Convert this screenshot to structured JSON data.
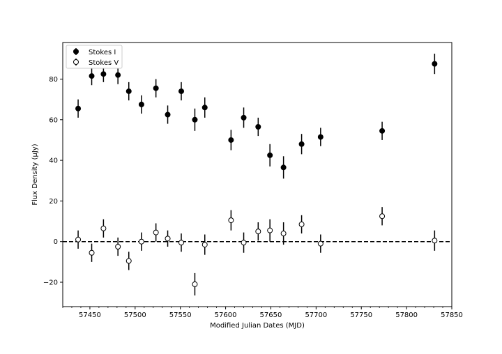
{
  "chart_data": {
    "type": "scatter",
    "title": "",
    "xlabel": "Modified Julian Dates (MJD)",
    "ylabel": "Flux Density (μJy)",
    "xlim": [
      57420,
      57850
    ],
    "ylim": [
      -32,
      98
    ],
    "xticks": [
      57450,
      57500,
      57550,
      57600,
      57650,
      57700,
      57750,
      57800,
      57850
    ],
    "xtick_labels": [
      "57450",
      "57500",
      "57550",
      "57600",
      "57650",
      "57700",
      "57750",
      "57800",
      "57850"
    ],
    "yticks": [
      -20,
      0,
      20,
      40,
      60,
      80
    ],
    "ytick_labels": [
      "−20",
      "0",
      "20",
      "40",
      "60",
      "80"
    ],
    "grid": false,
    "legend_position": "top-left",
    "reference_line": {
      "y": 0,
      "style": "dashed"
    },
    "series": [
      {
        "name": "Stokes I",
        "marker": "filled-circle",
        "color": "#000000",
        "x": [
          57437,
          57452,
          57465,
          57481,
          57493,
          57507,
          57523,
          57536,
          57551,
          57566,
          57577,
          57606,
          57620,
          57636,
          57649,
          57664,
          57684,
          57705,
          57773,
          57831
        ],
        "y": [
          65.5,
          81.5,
          82.5,
          82,
          74,
          67.5,
          75.5,
          62.5,
          74,
          60,
          66,
          50,
          61,
          56.5,
          42.5,
          36.5,
          48,
          51.5,
          54.5,
          87.5
        ],
        "err": [
          4.5,
          4.5,
          4,
          4.5,
          4.5,
          4.5,
          4.5,
          4.5,
          4.5,
          5.5,
          5,
          5,
          5,
          4.5,
          5.5,
          5.5,
          5,
          4.5,
          4.5,
          5
        ]
      },
      {
        "name": "Stokes V",
        "marker": "open-circle",
        "color": "#000000",
        "x": [
          57437,
          57452,
          57465,
          57481,
          57493,
          57507,
          57523,
          57536,
          57551,
          57577,
          57566,
          57606,
          57620,
          57636,
          57649,
          57664,
          57684,
          57705,
          57773,
          57831
        ],
        "y": [
          1,
          -5.5,
          6.5,
          -2.5,
          -9.5,
          0,
          4.5,
          1.5,
          -0.5,
          -1.5,
          -21,
          10.5,
          -0.5,
          5,
          5.5,
          4,
          8.5,
          -1,
          12.5,
          0.5
        ],
        "err": [
          4.5,
          4.5,
          4.5,
          4.5,
          4.5,
          4.5,
          4.5,
          4,
          4.5,
          5,
          5.5,
          5,
          5,
          4.5,
          5.5,
          5.5,
          4.5,
          4.5,
          4.5,
          5
        ]
      }
    ]
  }
}
